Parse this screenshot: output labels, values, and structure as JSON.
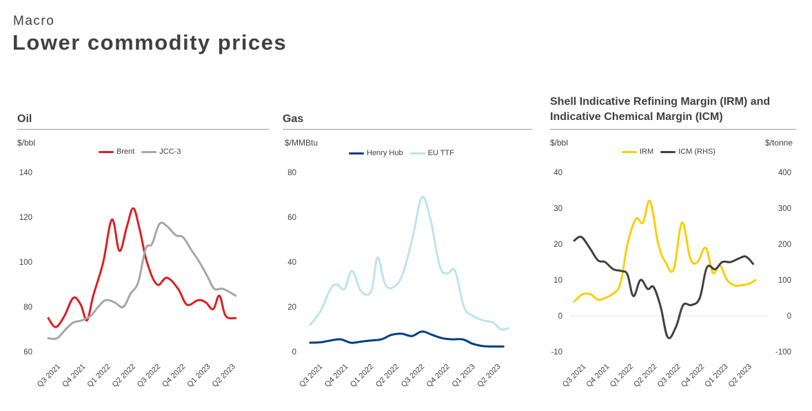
{
  "header": {
    "eyebrow": "Macro",
    "title": "Lower commodity prices"
  },
  "chart_data": [
    {
      "type": "line",
      "title": "Oil",
      "ylabel": "$/bbl",
      "ylim": [
        60,
        140
      ],
      "yticks": [
        60,
        80,
        100,
        120,
        140
      ],
      "xticks": [
        "Q3 2021",
        "Q4 2021",
        "Q1 2022",
        "Q2 2022",
        "Q3 2022",
        "Q4 2022",
        "Q1 2023",
        "Q2 2023"
      ],
      "xrange": [
        0,
        8
      ],
      "grid": false,
      "legend": "top-center",
      "series": [
        {
          "name": "Brent",
          "color": "#dd1d21",
          "axis": "left",
          "x": [
            0,
            0.3,
            0.65,
            1.0,
            1.3,
            1.55,
            1.8,
            2.2,
            2.55,
            2.85,
            3.15,
            3.4,
            3.65,
            3.95,
            4.35,
            4.75,
            5.2,
            5.55,
            6.0,
            6.3,
            6.6,
            6.85,
            7.1,
            7.5
          ],
          "y": [
            75,
            71,
            76,
            84,
            81,
            74,
            85,
            100,
            119,
            105,
            116,
            124,
            115,
            100,
            90,
            93,
            88,
            81,
            83,
            82,
            79,
            85,
            76,
            75
          ]
        },
        {
          "name": "JCC-3",
          "color": "#a6a6a6",
          "axis": "left",
          "x": [
            0,
            0.35,
            0.7,
            1.0,
            1.35,
            1.7,
            2.0,
            2.3,
            2.65,
            3.0,
            3.3,
            3.6,
            3.9,
            4.15,
            4.45,
            4.75,
            5.1,
            5.4,
            5.75,
            6.05,
            6.4,
            6.65,
            7.0,
            7.5
          ],
          "y": [
            66,
            66,
            70,
            73,
            74,
            76,
            80,
            83,
            82,
            80,
            86,
            91,
            106,
            108,
            117,
            116,
            112,
            111,
            105,
            100,
            93,
            88,
            88,
            85
          ]
        }
      ]
    },
    {
      "type": "line",
      "title": "Gas",
      "ylabel": "$/MMBtu",
      "ylim": [
        0,
        80
      ],
      "yticks": [
        0,
        20,
        40,
        60,
        80
      ],
      "xticks": [
        "Q3 2021",
        "Q4 2021",
        "Q1 2022",
        "Q2 2022",
        "Q3 2022",
        "Q4 2022",
        "Q1 2023",
        "Q2 2023"
      ],
      "xrange": [
        0,
        8
      ],
      "grid": false,
      "legend": "top-center",
      "series": [
        {
          "name": "Henry Hub",
          "color": "#003c88",
          "axis": "left",
          "x": [
            0,
            0.4,
            0.8,
            1.2,
            1.6,
            2.0,
            2.4,
            2.8,
            3.2,
            3.6,
            4.0,
            4.4,
            4.8,
            5.2,
            5.6,
            6.0,
            6.4,
            6.8,
            7.2,
            7.6
          ],
          "y": [
            4,
            4.2,
            5,
            5.5,
            4,
            4.5,
            5,
            5.5,
            7.5,
            8,
            7,
            9,
            7.5,
            6,
            5.5,
            5.5,
            3.5,
            2.5,
            2.3,
            2.3
          ]
        },
        {
          "name": "EU TTF",
          "color": "#bce4ea",
          "axis": "left",
          "x": [
            0,
            0.4,
            0.8,
            1.05,
            1.35,
            1.65,
            2.0,
            2.4,
            2.65,
            2.95,
            3.3,
            3.65,
            4.05,
            4.4,
            4.75,
            5.1,
            5.4,
            5.7,
            6.05,
            6.4,
            6.8,
            7.2,
            7.5,
            7.8
          ],
          "y": [
            12,
            18,
            28,
            30,
            28,
            36,
            27,
            27,
            42,
            30,
            29,
            35,
            52,
            69,
            58,
            38,
            35,
            36,
            20,
            16,
            14,
            13,
            10,
            10.5
          ]
        }
      ]
    },
    {
      "type": "line",
      "title": "Shell Indicative Refining Margin (IRM) and Indicative Chemical Margin (ICM)",
      "ylabel": "$/bbl",
      "y2label": "$/tonne",
      "ylim": [
        -10,
        40
      ],
      "yticks": [
        -10,
        0,
        10,
        20,
        30,
        40
      ],
      "y2lim": [
        -100,
        400
      ],
      "y2ticks": [
        -100,
        0,
        100,
        200,
        300,
        400
      ],
      "xticks": [
        "Q3 2021",
        "Q4 2021",
        "Q1 2022",
        "Q2 2022",
        "Q3 2022",
        "Q4 2022",
        "Q1 2023",
        "Q2 2023"
      ],
      "xrange": [
        0,
        8
      ],
      "grid": false,
      "legend": "top-center",
      "series": [
        {
          "name": "IRM",
          "color": "#fbce07",
          "axis": "left",
          "x": [
            0,
            0.35,
            0.7,
            1.0,
            1.3,
            1.6,
            1.95,
            2.25,
            2.6,
            2.9,
            3.2,
            3.55,
            3.85,
            4.2,
            4.55,
            4.9,
            5.2,
            5.55,
            5.85,
            6.15,
            6.45,
            6.75,
            7.05,
            7.4,
            7.65
          ],
          "y": [
            4,
            6,
            6,
            4.5,
            5,
            6,
            9,
            20,
            27,
            26,
            32,
            20,
            15,
            13,
            26,
            16,
            15,
            19,
            12,
            14,
            10,
            8.5,
            8.5,
            9,
            10
          ]
        },
        {
          "name": "ICM (RHS)",
          "color": "#404040",
          "axis": "right",
          "x": [
            0,
            0.3,
            0.65,
            1.0,
            1.3,
            1.65,
            2.0,
            2.25,
            2.5,
            2.8,
            3.1,
            3.35,
            3.65,
            3.95,
            4.3,
            4.6,
            4.95,
            5.3,
            5.6,
            5.95,
            6.25,
            6.6,
            6.95,
            7.25,
            7.55
          ],
          "y": [
            210,
            220,
            190,
            155,
            150,
            130,
            125,
            115,
            55,
            100,
            75,
            80,
            25,
            -60,
            -30,
            30,
            30,
            50,
            135,
            130,
            150,
            150,
            160,
            165,
            145
          ]
        }
      ]
    }
  ]
}
